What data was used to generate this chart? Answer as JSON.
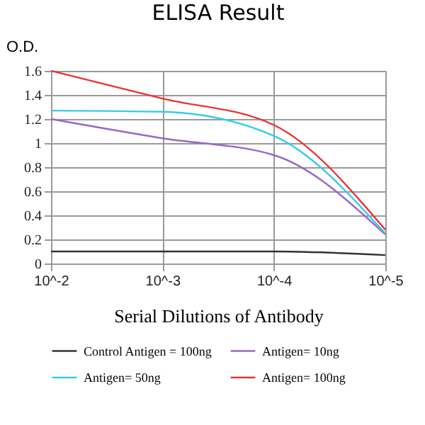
{
  "chart_data": {
    "type": "line",
    "title": "ELISA Result",
    "xlabel": "Serial Dilutions of Antibody",
    "ylabel": "O.D.",
    "categories": [
      "10^-2",
      "10^-3",
      "10^-4",
      "10^-5"
    ],
    "series": [
      {
        "name": "Control Antigen = 100ng",
        "color": "#333333",
        "values": [
          0.1,
          0.1,
          0.1,
          0.07
        ]
      },
      {
        "name": "Antigen= 10ng",
        "color": "#9966cc",
        "values": [
          1.2,
          1.04,
          0.9,
          0.24
        ]
      },
      {
        "name": "Antigen= 50ng",
        "color": "#33ccee",
        "values": [
          1.27,
          1.26,
          1.06,
          0.25
        ]
      },
      {
        "name": "Antigen= 100ng",
        "color": "#ee3333",
        "values": [
          1.6,
          1.37,
          1.15,
          0.28
        ]
      }
    ],
    "ylim": [
      0,
      1.6
    ],
    "yticks": [
      0,
      0.2,
      0.4,
      0.6,
      0.8,
      1,
      1.2,
      1.4,
      1.6
    ],
    "grid": true,
    "legend": "bottom",
    "marker": "none",
    "line_style": "solid"
  }
}
